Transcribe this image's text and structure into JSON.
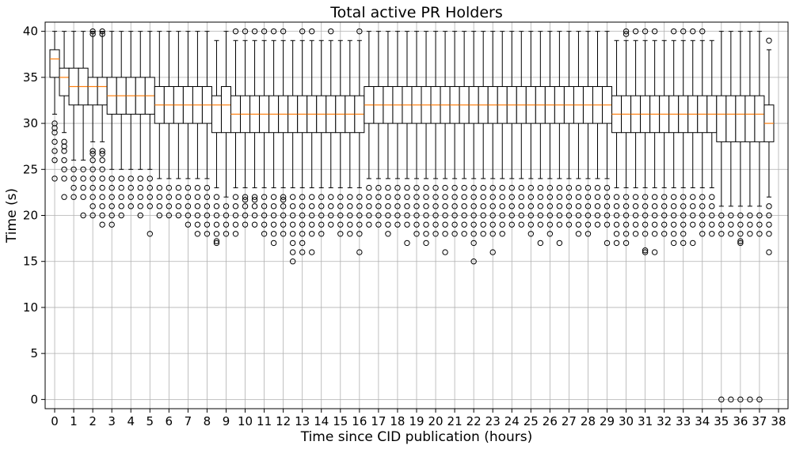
{
  "chart_data": {
    "type": "boxplot",
    "title": "Total active PR Holders",
    "xlabel": "Time since CID publication (hours)",
    "ylabel": "Time (s)",
    "xlim": [
      -0.5,
      38.5
    ],
    "ylim": [
      -1,
      41
    ],
    "x_ticks": [
      0,
      1,
      2,
      3,
      4,
      5,
      6,
      7,
      8,
      9,
      10,
      11,
      12,
      13,
      14,
      15,
      16,
      17,
      18,
      19,
      20,
      21,
      22,
      23,
      24,
      25,
      26,
      27,
      28,
      29,
      30,
      31,
      32,
      33,
      34,
      35,
      36,
      37,
      38
    ],
    "y_ticks": [
      0,
      5,
      10,
      15,
      20,
      25,
      30,
      35,
      40
    ],
    "grid": true,
    "median_color": "#ff7f0e",
    "box_width": 0.5,
    "boxes": [
      {
        "x": 0.0,
        "q1": 35,
        "med": 37,
        "q3": 38,
        "lo": 31,
        "hi": 40,
        "fliers": [
          30,
          29.5,
          29,
          28,
          27,
          26,
          24
        ]
      },
      {
        "x": 0.5,
        "q1": 33,
        "med": 35,
        "q3": 36,
        "lo": 29,
        "hi": 40,
        "fliers": [
          28,
          27.5,
          27,
          26,
          25,
          24,
          22
        ]
      },
      {
        "x": 1.0,
        "q1": 32,
        "med": 34,
        "q3": 36,
        "lo": 26,
        "hi": 40,
        "fliers": [
          25,
          24,
          23,
          22
        ]
      },
      {
        "x": 1.5,
        "q1": 32,
        "med": 34,
        "q3": 36,
        "lo": 26,
        "hi": 40,
        "fliers": [
          25,
          24,
          23,
          22,
          20
        ]
      },
      {
        "x": 2.0,
        "q1": 32,
        "med": 34,
        "q3": 35,
        "lo": 28,
        "hi": 40,
        "fliers": [
          40,
          39.7,
          27,
          26.7,
          26,
          25,
          24,
          23,
          22,
          21,
          20
        ]
      },
      {
        "x": 2.5,
        "q1": 32,
        "med": 34,
        "q3": 35,
        "lo": 28,
        "hi": 40,
        "fliers": [
          40,
          39.7,
          27,
          26.7,
          26,
          25,
          24,
          23,
          22,
          21,
          20,
          19
        ]
      },
      {
        "x": 3.0,
        "q1": 31,
        "med": 33,
        "q3": 35,
        "lo": 25,
        "hi": 40,
        "fliers": [
          24,
          23,
          22,
          21,
          20,
          19
        ]
      },
      {
        "x": 3.5,
        "q1": 31,
        "med": 33,
        "q3": 35,
        "lo": 25,
        "hi": 40,
        "fliers": [
          24,
          23,
          22,
          21,
          20
        ]
      },
      {
        "x": 4.0,
        "q1": 31,
        "med": 33,
        "q3": 35,
        "lo": 25,
        "hi": 40,
        "fliers": [
          24,
          23,
          22,
          21
        ]
      },
      {
        "x": 4.5,
        "q1": 31,
        "med": 33,
        "q3": 35,
        "lo": 25,
        "hi": 40,
        "fliers": [
          24,
          23,
          22,
          21,
          20
        ]
      },
      {
        "x": 5.0,
        "q1": 31,
        "med": 33,
        "q3": 35,
        "lo": 25,
        "hi": 40,
        "fliers": [
          24,
          23,
          22,
          21,
          18
        ]
      },
      {
        "x": 5.5,
        "q1": 30,
        "med": 32,
        "q3": 34,
        "lo": 24,
        "hi": 40,
        "fliers": [
          23,
          22,
          21,
          20
        ]
      },
      {
        "x": 6.0,
        "q1": 30,
        "med": 32,
        "q3": 34,
        "lo": 24,
        "hi": 40,
        "fliers": [
          23,
          22,
          21,
          20
        ]
      },
      {
        "x": 6.5,
        "q1": 30,
        "med": 32,
        "q3": 34,
        "lo": 24,
        "hi": 40,
        "fliers": [
          23,
          22,
          21,
          20
        ]
      },
      {
        "x": 7.0,
        "q1": 30,
        "med": 32,
        "q3": 34,
        "lo": 24,
        "hi": 40,
        "fliers": [
          23,
          22,
          21,
          20,
          19
        ]
      },
      {
        "x": 7.5,
        "q1": 30,
        "med": 32,
        "q3": 34,
        "lo": 24,
        "hi": 40,
        "fliers": [
          23,
          22,
          21,
          20,
          19,
          18
        ]
      },
      {
        "x": 8.0,
        "q1": 30,
        "med": 32,
        "q3": 34,
        "lo": 24,
        "hi": 40,
        "fliers": [
          23,
          22,
          21,
          20,
          19,
          18
        ]
      },
      {
        "x": 8.5,
        "q1": 29,
        "med": 32,
        "q3": 33,
        "lo": 23,
        "hi": 39,
        "fliers": [
          22,
          21,
          20,
          19,
          18,
          17.2,
          17
        ]
      },
      {
        "x": 9.0,
        "q1": 29,
        "med": 32,
        "q3": 34,
        "lo": 22,
        "hi": 40,
        "fliers": [
          21,
          20,
          19,
          18
        ]
      },
      {
        "x": 9.5,
        "q1": 29,
        "med": 31,
        "q3": 33,
        "lo": 23,
        "hi": 39,
        "fliers": [
          40,
          22,
          21,
          20,
          19,
          18
        ]
      },
      {
        "x": 10.0,
        "q1": 29,
        "med": 31,
        "q3": 33,
        "lo": 23,
        "hi": 39,
        "fliers": [
          40,
          22,
          21.7,
          21,
          20,
          19
        ]
      },
      {
        "x": 10.5,
        "q1": 29,
        "med": 31,
        "q3": 33,
        "lo": 23,
        "hi": 39,
        "fliers": [
          40,
          22,
          21.7,
          21,
          20,
          19
        ]
      },
      {
        "x": 11.0,
        "q1": 29,
        "med": 31,
        "q3": 33,
        "lo": 23,
        "hi": 39,
        "fliers": [
          40,
          22,
          21,
          20,
          19,
          18
        ]
      },
      {
        "x": 11.5,
        "q1": 29,
        "med": 31,
        "q3": 33,
        "lo": 23,
        "hi": 39,
        "fliers": [
          40,
          22,
          21,
          20,
          19,
          18,
          17
        ]
      },
      {
        "x": 12.0,
        "q1": 29,
        "med": 31,
        "q3": 33,
        "lo": 23,
        "hi": 39,
        "fliers": [
          40,
          22,
          21.7,
          21,
          20,
          19,
          18
        ]
      },
      {
        "x": 12.5,
        "q1": 29,
        "med": 31,
        "q3": 33,
        "lo": 23,
        "hi": 39,
        "fliers": [
          22,
          21,
          20,
          19,
          18,
          17,
          16,
          15
        ]
      },
      {
        "x": 13.0,
        "q1": 29,
        "med": 31,
        "q3": 33,
        "lo": 23,
        "hi": 39,
        "fliers": [
          40,
          22,
          21,
          20,
          19,
          18,
          17,
          16
        ]
      },
      {
        "x": 13.5,
        "q1": 29,
        "med": 31,
        "q3": 33,
        "lo": 23,
        "hi": 39,
        "fliers": [
          40,
          22,
          21,
          20,
          19,
          18,
          16
        ]
      },
      {
        "x": 14.0,
        "q1": 29,
        "med": 31,
        "q3": 33,
        "lo": 23,
        "hi": 39,
        "fliers": [
          22,
          21,
          20,
          19,
          18
        ]
      },
      {
        "x": 14.5,
        "q1": 29,
        "med": 31,
        "q3": 33,
        "lo": 23,
        "hi": 39,
        "fliers": [
          40,
          22,
          21,
          20,
          19
        ]
      },
      {
        "x": 15.0,
        "q1": 29,
        "med": 31,
        "q3": 33,
        "lo": 23,
        "hi": 39,
        "fliers": [
          22,
          21,
          20,
          19,
          18
        ]
      },
      {
        "x": 15.5,
        "q1": 29,
        "med": 31,
        "q3": 33,
        "lo": 23,
        "hi": 39,
        "fliers": [
          22,
          21,
          20,
          19,
          18
        ]
      },
      {
        "x": 16.0,
        "q1": 29,
        "med": 31,
        "q3": 33,
        "lo": 23,
        "hi": 39,
        "fliers": [
          40,
          22,
          21,
          20,
          19,
          18,
          16
        ]
      },
      {
        "x": 16.5,
        "q1": 30,
        "med": 32,
        "q3": 34,
        "lo": 24,
        "hi": 40,
        "fliers": [
          23,
          22,
          21,
          20,
          19
        ]
      },
      {
        "x": 17.0,
        "q1": 30,
        "med": 32,
        "q3": 34,
        "lo": 24,
        "hi": 40,
        "fliers": [
          23,
          22,
          21,
          20,
          19
        ]
      },
      {
        "x": 17.5,
        "q1": 30,
        "med": 32,
        "q3": 34,
        "lo": 24,
        "hi": 40,
        "fliers": [
          23,
          22,
          21,
          20,
          19,
          18
        ]
      },
      {
        "x": 18.0,
        "q1": 30,
        "med": 32,
        "q3": 34,
        "lo": 24,
        "hi": 40,
        "fliers": [
          23,
          22,
          21,
          20,
          19
        ]
      },
      {
        "x": 18.5,
        "q1": 30,
        "med": 32,
        "q3": 34,
        "lo": 24,
        "hi": 40,
        "fliers": [
          23,
          22,
          21,
          20,
          19,
          17
        ]
      },
      {
        "x": 19.0,
        "q1": 30,
        "med": 32,
        "q3": 34,
        "lo": 24,
        "hi": 40,
        "fliers": [
          23,
          22,
          21,
          20,
          19,
          18
        ]
      },
      {
        "x": 19.5,
        "q1": 30,
        "med": 32,
        "q3": 34,
        "lo": 24,
        "hi": 40,
        "fliers": [
          23,
          22,
          21,
          20,
          19,
          18,
          17
        ]
      },
      {
        "x": 20.0,
        "q1": 30,
        "med": 32,
        "q3": 34,
        "lo": 24,
        "hi": 40,
        "fliers": [
          23,
          22,
          21,
          20,
          19,
          18
        ]
      },
      {
        "x": 20.5,
        "q1": 30,
        "med": 32,
        "q3": 34,
        "lo": 24,
        "hi": 40,
        "fliers": [
          23,
          22,
          21,
          20,
          19,
          18,
          16
        ]
      },
      {
        "x": 21.0,
        "q1": 30,
        "med": 32,
        "q3": 34,
        "lo": 24,
        "hi": 40,
        "fliers": [
          23,
          22,
          21,
          20,
          19,
          18
        ]
      },
      {
        "x": 21.5,
        "q1": 30,
        "med": 32,
        "q3": 34,
        "lo": 24,
        "hi": 40,
        "fliers": [
          23,
          22,
          21,
          20,
          19,
          18
        ]
      },
      {
        "x": 22.0,
        "q1": 30,
        "med": 32,
        "q3": 34,
        "lo": 24,
        "hi": 40,
        "fliers": [
          23,
          22,
          21,
          20,
          19,
          18,
          17,
          15
        ]
      },
      {
        "x": 22.5,
        "q1": 30,
        "med": 32,
        "q3": 34,
        "lo": 24,
        "hi": 40,
        "fliers": [
          23,
          22,
          21,
          20,
          19,
          18
        ]
      },
      {
        "x": 23.0,
        "q1": 30,
        "med": 32,
        "q3": 34,
        "lo": 24,
        "hi": 40,
        "fliers": [
          23,
          22,
          21,
          20,
          19,
          18,
          16
        ]
      },
      {
        "x": 23.5,
        "q1": 30,
        "med": 32,
        "q3": 34,
        "lo": 24,
        "hi": 40,
        "fliers": [
          23,
          22,
          21,
          20,
          19,
          18
        ]
      },
      {
        "x": 24.0,
        "q1": 30,
        "med": 32,
        "q3": 34,
        "lo": 24,
        "hi": 40,
        "fliers": [
          23,
          22,
          21,
          20,
          19
        ]
      },
      {
        "x": 24.5,
        "q1": 30,
        "med": 32,
        "q3": 34,
        "lo": 24,
        "hi": 40,
        "fliers": [
          23,
          22,
          21,
          20,
          19
        ]
      },
      {
        "x": 25.0,
        "q1": 30,
        "med": 32,
        "q3": 34,
        "lo": 24,
        "hi": 40,
        "fliers": [
          23,
          22,
          21,
          20,
          19,
          18
        ]
      },
      {
        "x": 25.5,
        "q1": 30,
        "med": 32,
        "q3": 34,
        "lo": 24,
        "hi": 40,
        "fliers": [
          23,
          22,
          21,
          20,
          19,
          17
        ]
      },
      {
        "x": 26.0,
        "q1": 30,
        "med": 32,
        "q3": 34,
        "lo": 24,
        "hi": 40,
        "fliers": [
          23,
          22,
          21,
          20,
          19,
          18
        ]
      },
      {
        "x": 26.5,
        "q1": 30,
        "med": 32,
        "q3": 34,
        "lo": 24,
        "hi": 40,
        "fliers": [
          23,
          22,
          21,
          20,
          19,
          17
        ]
      },
      {
        "x": 27.0,
        "q1": 30,
        "med": 32,
        "q3": 34,
        "lo": 24,
        "hi": 40,
        "fliers": [
          23,
          22,
          21,
          20,
          19
        ]
      },
      {
        "x": 27.5,
        "q1": 30,
        "med": 32,
        "q3": 34,
        "lo": 24,
        "hi": 40,
        "fliers": [
          23,
          22,
          21,
          20,
          19,
          18
        ]
      },
      {
        "x": 28.0,
        "q1": 30,
        "med": 32,
        "q3": 34,
        "lo": 24,
        "hi": 40,
        "fliers": [
          23,
          22,
          21,
          20,
          19,
          18
        ]
      },
      {
        "x": 28.5,
        "q1": 30,
        "med": 32,
        "q3": 34,
        "lo": 24,
        "hi": 40,
        "fliers": [
          23,
          22,
          21,
          20,
          19
        ]
      },
      {
        "x": 29.0,
        "q1": 30,
        "med": 32,
        "q3": 34,
        "lo": 24,
        "hi": 40,
        "fliers": [
          23,
          22,
          21,
          20,
          19,
          17
        ]
      },
      {
        "x": 29.5,
        "q1": 29,
        "med": 31,
        "q3": 33,
        "lo": 23,
        "hi": 39,
        "fliers": [
          22,
          21,
          20,
          19,
          18,
          17
        ]
      },
      {
        "x": 30.0,
        "q1": 29,
        "med": 31,
        "q3": 33,
        "lo": 23,
        "hi": 39,
        "fliers": [
          40,
          39.7,
          22,
          21,
          20,
          19,
          18,
          17
        ]
      },
      {
        "x": 30.5,
        "q1": 29,
        "med": 31,
        "q3": 33,
        "lo": 23,
        "hi": 39,
        "fliers": [
          40,
          22,
          21,
          20,
          19,
          18
        ]
      },
      {
        "x": 31.0,
        "q1": 29,
        "med": 31,
        "q3": 33,
        "lo": 23,
        "hi": 39,
        "fliers": [
          40,
          22,
          21,
          20,
          19,
          18,
          16.2,
          16
        ]
      },
      {
        "x": 31.5,
        "q1": 29,
        "med": 31,
        "q3": 33,
        "lo": 23,
        "hi": 39,
        "fliers": [
          40,
          22,
          21,
          20,
          19,
          18,
          16
        ]
      },
      {
        "x": 32.0,
        "q1": 29,
        "med": 31,
        "q3": 33,
        "lo": 23,
        "hi": 39,
        "fliers": [
          22,
          21,
          20,
          19,
          18
        ]
      },
      {
        "x": 32.5,
        "q1": 29,
        "med": 31,
        "q3": 33,
        "lo": 23,
        "hi": 39,
        "fliers": [
          40,
          22,
          21,
          20,
          19,
          18,
          17
        ]
      },
      {
        "x": 33.0,
        "q1": 29,
        "med": 31,
        "q3": 33,
        "lo": 23,
        "hi": 39,
        "fliers": [
          40,
          22,
          21,
          20,
          19,
          18,
          17
        ]
      },
      {
        "x": 33.5,
        "q1": 29,
        "med": 31,
        "q3": 33,
        "lo": 23,
        "hi": 39,
        "fliers": [
          40,
          22,
          21,
          20,
          19,
          17
        ]
      },
      {
        "x": 34.0,
        "q1": 29,
        "med": 31,
        "q3": 33,
        "lo": 23,
        "hi": 39,
        "fliers": [
          40,
          22,
          21,
          20,
          19,
          18
        ]
      },
      {
        "x": 34.5,
        "q1": 29,
        "med": 31,
        "q3": 33,
        "lo": 23,
        "hi": 39,
        "fliers": [
          22,
          21,
          20,
          19,
          18
        ]
      },
      {
        "x": 35.0,
        "q1": 28,
        "med": 31,
        "q3": 33,
        "lo": 21,
        "hi": 40,
        "fliers": [
          20,
          19,
          18,
          0
        ]
      },
      {
        "x": 35.5,
        "q1": 28,
        "med": 31,
        "q3": 33,
        "lo": 21,
        "hi": 40,
        "fliers": [
          20,
          19,
          18,
          0
        ]
      },
      {
        "x": 36.0,
        "q1": 28,
        "med": 31,
        "q3": 33,
        "lo": 21,
        "hi": 40,
        "fliers": [
          20,
          19,
          18,
          17.2,
          17,
          0
        ]
      },
      {
        "x": 36.5,
        "q1": 28,
        "med": 31,
        "q3": 33,
        "lo": 21,
        "hi": 40,
        "fliers": [
          20,
          19,
          18,
          0
        ]
      },
      {
        "x": 37.0,
        "q1": 28,
        "med": 31,
        "q3": 33,
        "lo": 21,
        "hi": 40,
        "fliers": [
          20,
          19,
          18,
          0
        ]
      },
      {
        "x": 37.5,
        "q1": 28,
        "med": 30,
        "q3": 32,
        "lo": 22,
        "hi": 38,
        "fliers": [
          39,
          21,
          20,
          19,
          18,
          16
        ]
      }
    ]
  }
}
